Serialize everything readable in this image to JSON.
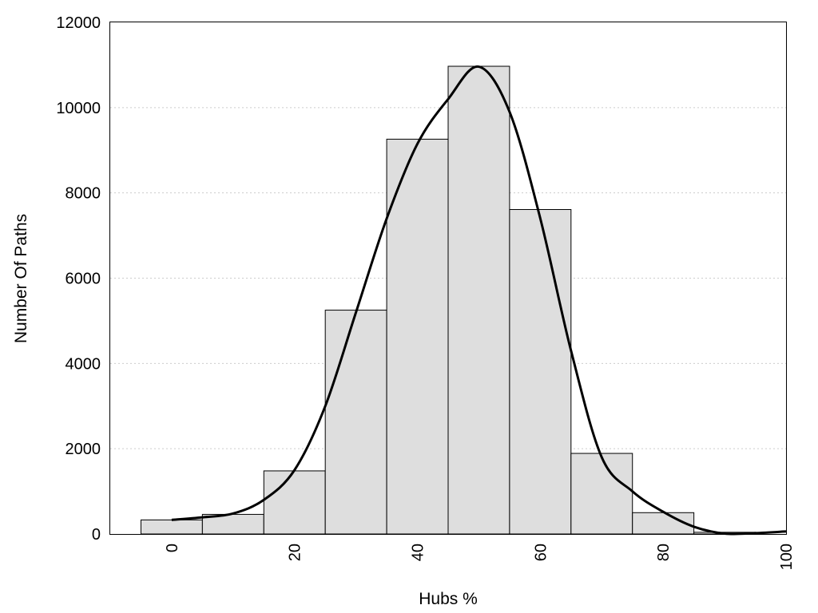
{
  "chart_data": {
    "type": "bar",
    "xlabel": "Hubs %",
    "ylabel": "Number Of Paths",
    "xlim": [
      -10,
      100
    ],
    "ylim": [
      0,
      12000
    ],
    "x_ticks": [
      0,
      20,
      40,
      60,
      80,
      100
    ],
    "y_ticks": [
      0,
      2000,
      4000,
      6000,
      8000,
      10000,
      12000
    ],
    "grid": "horizontal dotted",
    "bin_width": 10,
    "bars": [
      {
        "x": 0,
        "value": 330
      },
      {
        "x": 10,
        "value": 460
      },
      {
        "x": 20,
        "value": 1480
      },
      {
        "x": 30,
        "value": 5250
      },
      {
        "x": 40,
        "value": 9260
      },
      {
        "x": 50,
        "value": 10970
      },
      {
        "x": 60,
        "value": 7610
      },
      {
        "x": 70,
        "value": 1890
      },
      {
        "x": 80,
        "value": 500
      },
      {
        "x": 90,
        "value": 40
      }
    ],
    "curve": [
      {
        "x": 0,
        "y": 330
      },
      {
        "x": 5,
        "y": 390
      },
      {
        "x": 10,
        "y": 480
      },
      {
        "x": 15,
        "y": 800
      },
      {
        "x": 20,
        "y": 1500
      },
      {
        "x": 25,
        "y": 3000
      },
      {
        "x": 30,
        "y": 5200
      },
      {
        "x": 35,
        "y": 7400
      },
      {
        "x": 40,
        "y": 9150
      },
      {
        "x": 45,
        "y": 10200
      },
      {
        "x": 50,
        "y": 10960
      },
      {
        "x": 55,
        "y": 9900
      },
      {
        "x": 60,
        "y": 7400
      },
      {
        "x": 65,
        "y": 4300
      },
      {
        "x": 70,
        "y": 1800
      },
      {
        "x": 75,
        "y": 1000
      },
      {
        "x": 80,
        "y": 520
      },
      {
        "x": 85,
        "y": 170
      },
      {
        "x": 90,
        "y": 10
      },
      {
        "x": 95,
        "y": 20
      },
      {
        "x": 100,
        "y": 60
      }
    ],
    "colors": {
      "bar_fill": "#dedede",
      "bar_stroke": "#000000",
      "curve": "#000000",
      "grid": "#cccccc"
    }
  }
}
